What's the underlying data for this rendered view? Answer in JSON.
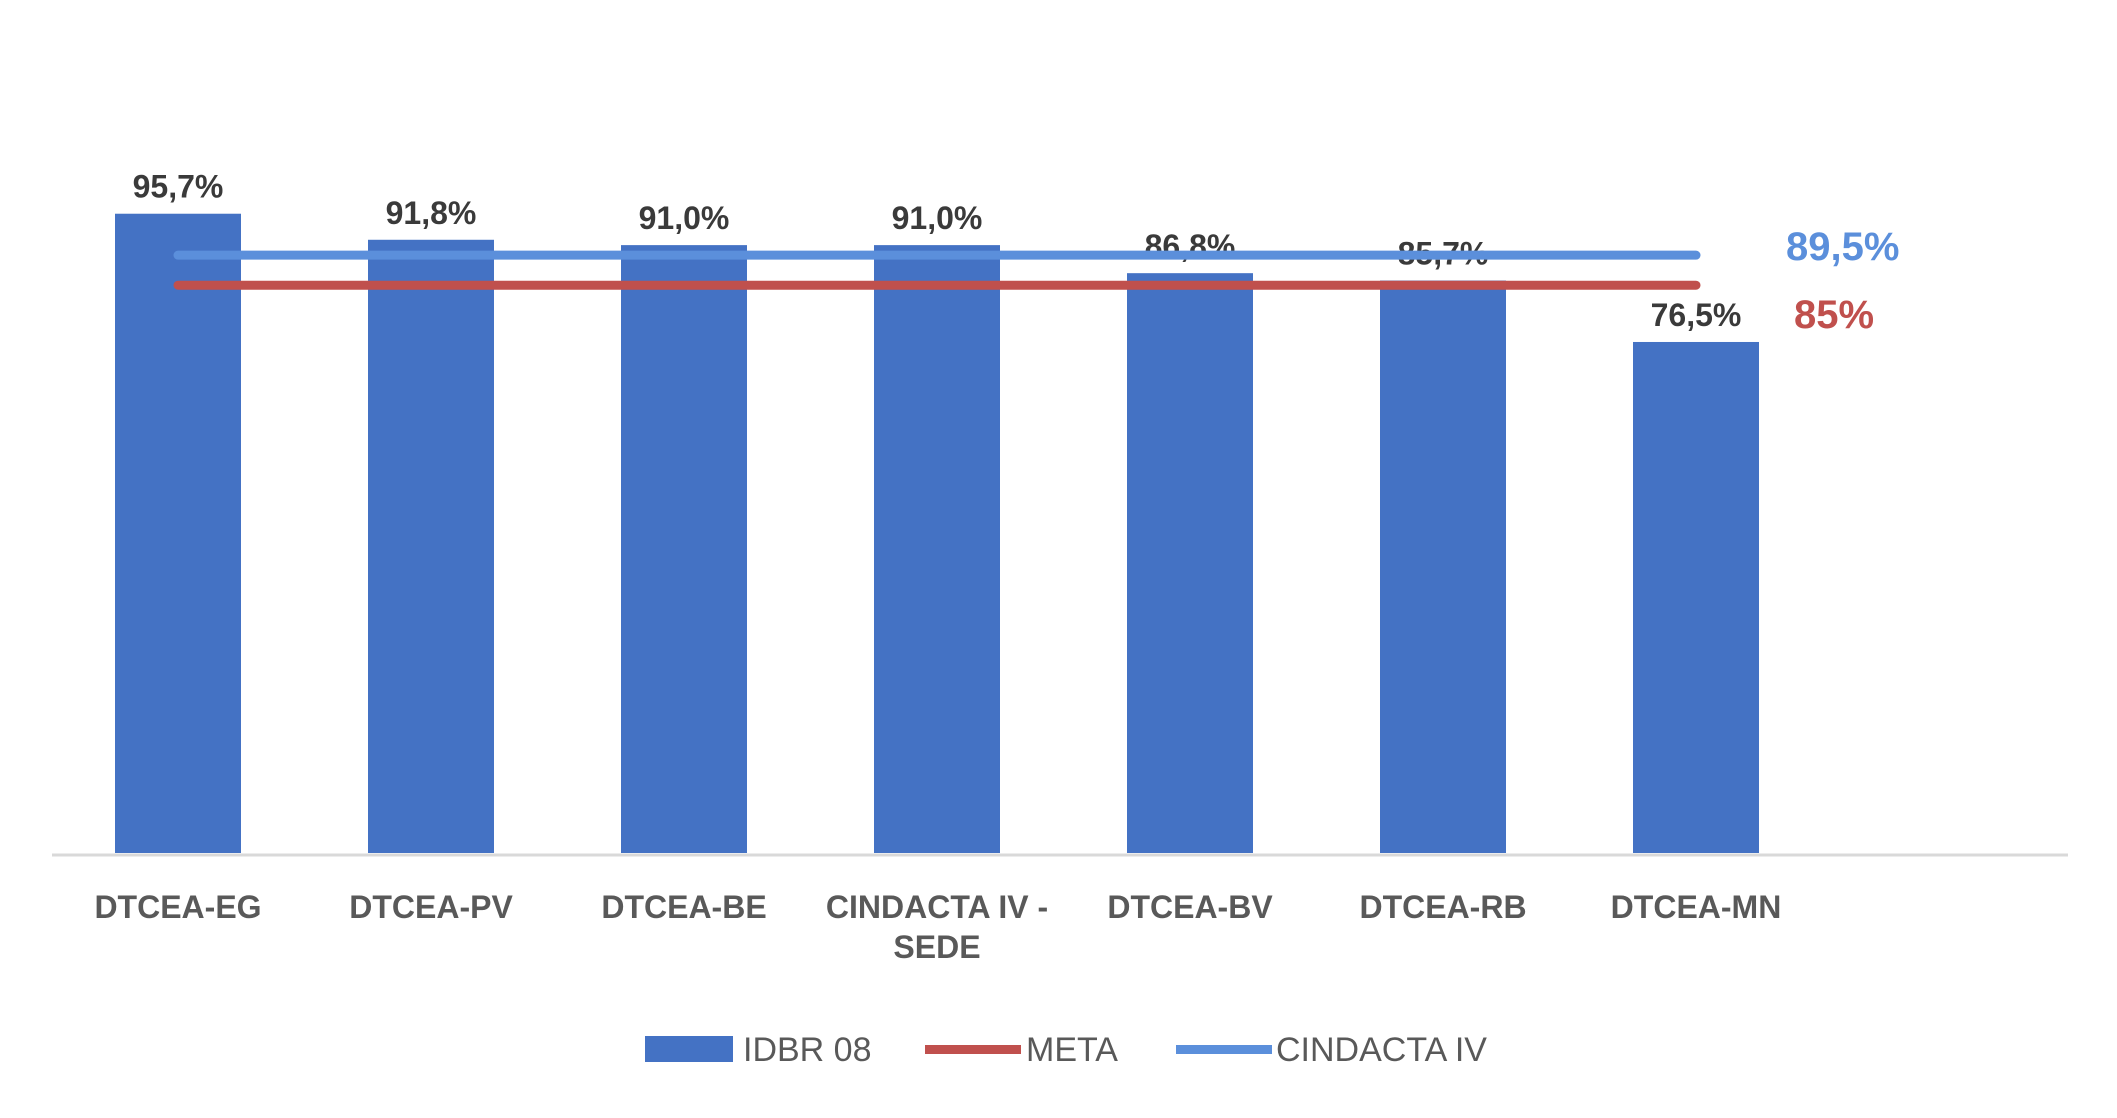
{
  "chart_data": {
    "type": "bar",
    "categories": [
      [
        "DTCEA-EG"
      ],
      [
        "DTCEA-PV"
      ],
      [
        "DTCEA-BE"
      ],
      [
        "CINDACTA IV -",
        "SEDE"
      ],
      [
        "DTCEA-BV"
      ],
      [
        "DTCEA-RB"
      ],
      [
        "DTCEA-MN"
      ]
    ],
    "series": [
      {
        "name": "IDBR 08",
        "kind": "bar",
        "color": "#4472C4",
        "values": [
          95.7,
          91.8,
          91.0,
          91.0,
          86.8,
          85.7,
          76.5
        ],
        "labels": [
          "95,7%",
          "91,8%",
          "91,0%",
          "91,0%",
          "86,8%",
          "85,7%",
          "76,5%"
        ]
      },
      {
        "name": "META",
        "kind": "line",
        "color": "#C0504D",
        "value": 85,
        "label": "85%"
      },
      {
        "name": "CINDACTA IV",
        "kind": "line",
        "color": "#5B8FDB",
        "value": 89.5,
        "label": "89,5%"
      }
    ],
    "ylim": [
      0,
      100
    ],
    "grid": false,
    "legend_position": "bottom"
  }
}
